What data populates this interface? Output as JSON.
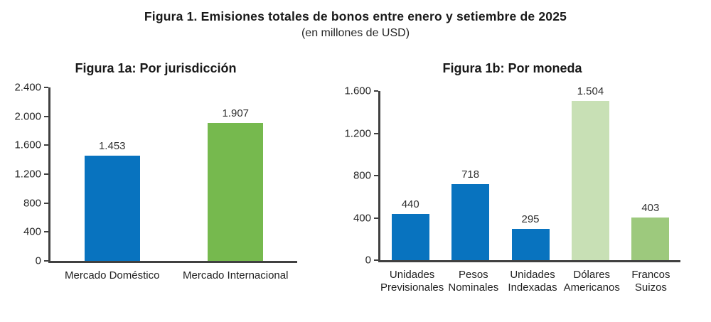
{
  "header": {
    "title": "Figura 1. Emisiones totales de bonos entre enero y setiembre de 2025",
    "subtitle": "(en millones de USD)"
  },
  "colors": {
    "blue": "#0873BF",
    "green": "#76B94E",
    "light_green": "#C8E0B5",
    "medium_green": "#9DC97D",
    "axis": "#404040"
  },
  "chart_data": [
    {
      "type": "bar",
      "title": "Figura 1a: Por jurisdicción",
      "categories": [
        "Mercado Doméstico",
        "Mercado Internacional"
      ],
      "values": [
        1453,
        1907
      ],
      "value_labels": [
        "1.453",
        "1.907"
      ],
      "bar_colors": [
        "#0873BF",
        "#76B94E"
      ],
      "ylim": [
        0,
        2400
      ],
      "ytick_step": 400,
      "ytick_labels": [
        "0",
        "400",
        "800",
        "1.200",
        "1.600",
        "2.000",
        "2.400"
      ],
      "grid": false,
      "legend": "none"
    },
    {
      "type": "bar",
      "title": "Figura 1b: Por moneda",
      "categories": [
        "Unidades\nPrevisionales",
        "Pesos\nNominales",
        "Unidades\nIndexadas",
        "Dólares\nAmericanos",
        "Francos\nSuizos"
      ],
      "values": [
        440,
        718,
        295,
        1504,
        403
      ],
      "value_labels": [
        "440",
        "718",
        "295",
        "1.504",
        "403"
      ],
      "bar_colors": [
        "#0873BF",
        "#0873BF",
        "#0873BF",
        "#C8E0B5",
        "#9DC97D"
      ],
      "ylim": [
        0,
        1600
      ],
      "ytick_step": 400,
      "ytick_labels": [
        "0",
        "400",
        "800",
        "1.200",
        "1.600"
      ],
      "grid": false,
      "legend": "none"
    }
  ]
}
